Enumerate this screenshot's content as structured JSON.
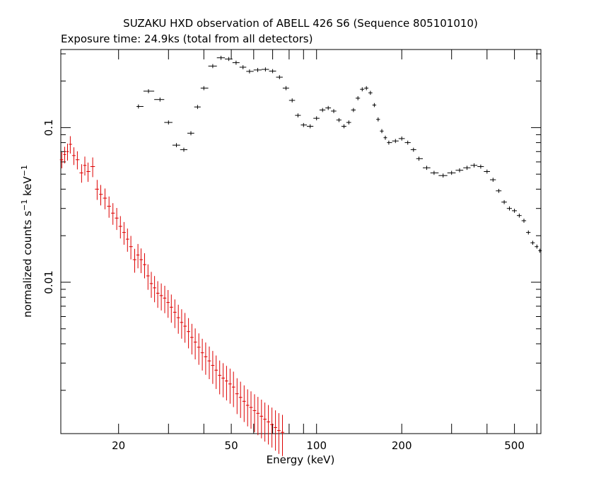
{
  "chart_data": {
    "type": "scatter",
    "title": "SUZAKU HXD observation of ABELL 426 S6 (Sequence 805101010)",
    "subtitle": "Exposure time: 24.9ks (total from all detectors)",
    "xlabel": "Energy (keV)",
    "ylabel_main": "normalized counts s",
    "ylabel_sup1": "−1",
    "ylabel_mid": " keV",
    "ylabel_sup2": "−1",
    "x_scale": "log",
    "y_scale": "log",
    "xlim": [
      12.5,
      620
    ],
    "ylim": [
      0.00105,
      0.32
    ],
    "x_ticks": [
      {
        "value": 20,
        "label": "20"
      },
      {
        "value": 50,
        "label": "50"
      },
      {
        "value": 100,
        "label": "100"
      },
      {
        "value": 200,
        "label": "200"
      },
      {
        "value": 500,
        "label": "500"
      }
    ],
    "y_ticks": [
      {
        "value": 0.01,
        "label": "0.01"
      },
      {
        "value": 0.1,
        "label": "0.1"
      }
    ],
    "series": [
      {
        "color": "#000000",
        "points": [
          [
            23.5,
            0.137
          ],
          [
            25.5,
            0.172
          ],
          [
            28,
            0.152
          ],
          [
            30,
            0.108
          ],
          [
            32,
            0.077
          ],
          [
            34,
            0.072
          ],
          [
            36,
            0.092
          ],
          [
            38,
            0.136
          ],
          [
            40,
            0.18
          ],
          [
            43,
            0.25
          ],
          [
            46,
            0.283
          ],
          [
            49,
            0.278
          ],
          [
            52,
            0.263
          ],
          [
            55,
            0.246
          ],
          [
            58,
            0.231
          ],
          [
            62,
            0.236
          ],
          [
            66,
            0.238
          ],
          [
            70,
            0.232
          ],
          [
            74,
            0.212
          ],
          [
            78,
            0.18
          ],
          [
            82,
            0.15
          ],
          [
            86,
            0.12
          ],
          [
            90,
            0.104
          ],
          [
            95,
            0.102
          ],
          [
            100,
            0.115
          ],
          [
            105,
            0.13
          ],
          [
            110,
            0.134
          ],
          [
            115,
            0.128
          ],
          [
            120,
            0.112
          ],
          [
            125,
            0.102
          ],
          [
            130,
            0.108
          ],
          [
            135,
            0.13
          ],
          [
            140,
            0.155
          ],
          [
            145,
            0.177
          ],
          [
            150,
            0.18
          ],
          [
            155,
            0.168
          ],
          [
            160,
            0.14
          ],
          [
            165,
            0.113
          ],
          [
            170,
            0.095
          ],
          [
            175,
            0.086
          ],
          [
            180,
            0.08
          ],
          [
            190,
            0.082
          ],
          [
            200,
            0.085
          ],
          [
            210,
            0.08
          ],
          [
            220,
            0.072
          ],
          [
            230,
            0.063
          ],
          [
            245,
            0.055
          ],
          [
            260,
            0.051
          ],
          [
            280,
            0.049
          ],
          [
            300,
            0.051
          ],
          [
            320,
            0.053
          ],
          [
            340,
            0.055
          ],
          [
            360,
            0.057
          ],
          [
            380,
            0.056
          ],
          [
            400,
            0.052
          ],
          [
            420,
            0.046
          ],
          [
            440,
            0.039
          ],
          [
            460,
            0.033
          ],
          [
            480,
            0.03
          ],
          [
            500,
            0.029
          ],
          [
            520,
            0.027
          ],
          [
            540,
            0.025
          ],
          [
            560,
            0.021
          ],
          [
            580,
            0.018
          ],
          [
            600,
            0.017
          ],
          [
            615,
            0.016
          ]
        ]
      },
      {
        "color": "#dd0000",
        "points": [
          [
            12.6,
            0.062
          ],
          [
            12.9,
            0.067
          ],
          [
            13.2,
            0.07
          ],
          [
            13.5,
            0.078
          ],
          [
            13.9,
            0.066
          ],
          [
            14.3,
            0.062
          ],
          [
            14.8,
            0.051
          ],
          [
            15.2,
            0.057
          ],
          [
            15.6,
            0.052
          ],
          [
            16.2,
            0.056
          ],
          [
            16.8,
            0.04
          ],
          [
            17.3,
            0.037
          ],
          [
            17.9,
            0.035
          ],
          [
            18.5,
            0.031
          ],
          [
            19.1,
            0.028
          ],
          [
            19.7,
            0.026
          ],
          [
            20.3,
            0.023
          ],
          [
            20.9,
            0.021
          ],
          [
            21.5,
            0.019
          ],
          [
            22.1,
            0.017
          ],
          [
            22.8,
            0.014
          ],
          [
            23.4,
            0.015
          ],
          [
            24.0,
            0.014
          ],
          [
            24.7,
            0.013
          ],
          [
            25.4,
            0.011
          ],
          [
            26.1,
            0.0098
          ],
          [
            26.8,
            0.0092
          ],
          [
            27.5,
            0.0085
          ],
          [
            28.3,
            0.0082
          ],
          [
            29.1,
            0.0079
          ],
          [
            29.9,
            0.0074
          ],
          [
            30.7,
            0.0069
          ],
          [
            31.6,
            0.0064
          ],
          [
            32.5,
            0.0059
          ],
          [
            33.4,
            0.0055
          ],
          [
            34.3,
            0.0052
          ],
          [
            35.3,
            0.0048
          ],
          [
            36.3,
            0.0044
          ],
          [
            37.3,
            0.0041
          ],
          [
            38.4,
            0.0038
          ],
          [
            39.5,
            0.0035
          ],
          [
            40.6,
            0.0033
          ],
          [
            41.8,
            0.0031
          ],
          [
            43.0,
            0.0029
          ],
          [
            44.2,
            0.0027
          ],
          [
            45.5,
            0.0025
          ],
          [
            46.8,
            0.0024
          ],
          [
            48.1,
            0.0023
          ],
          [
            49.5,
            0.0022
          ],
          [
            50.9,
            0.0021
          ],
          [
            52.4,
            0.0019
          ],
          [
            53.9,
            0.0018
          ],
          [
            55.5,
            0.0017
          ],
          [
            57.1,
            0.0016
          ],
          [
            58.7,
            0.00155
          ],
          [
            60.4,
            0.00148
          ],
          [
            62.1,
            0.00142
          ],
          [
            63.9,
            0.00136
          ],
          [
            65.7,
            0.0013
          ],
          [
            67.6,
            0.00125
          ],
          [
            69.6,
            0.0012
          ],
          [
            71.6,
            0.00115
          ],
          [
            73.6,
            0.0011
          ],
          [
            75.8,
            0.00107
          ]
        ]
      }
    ]
  }
}
